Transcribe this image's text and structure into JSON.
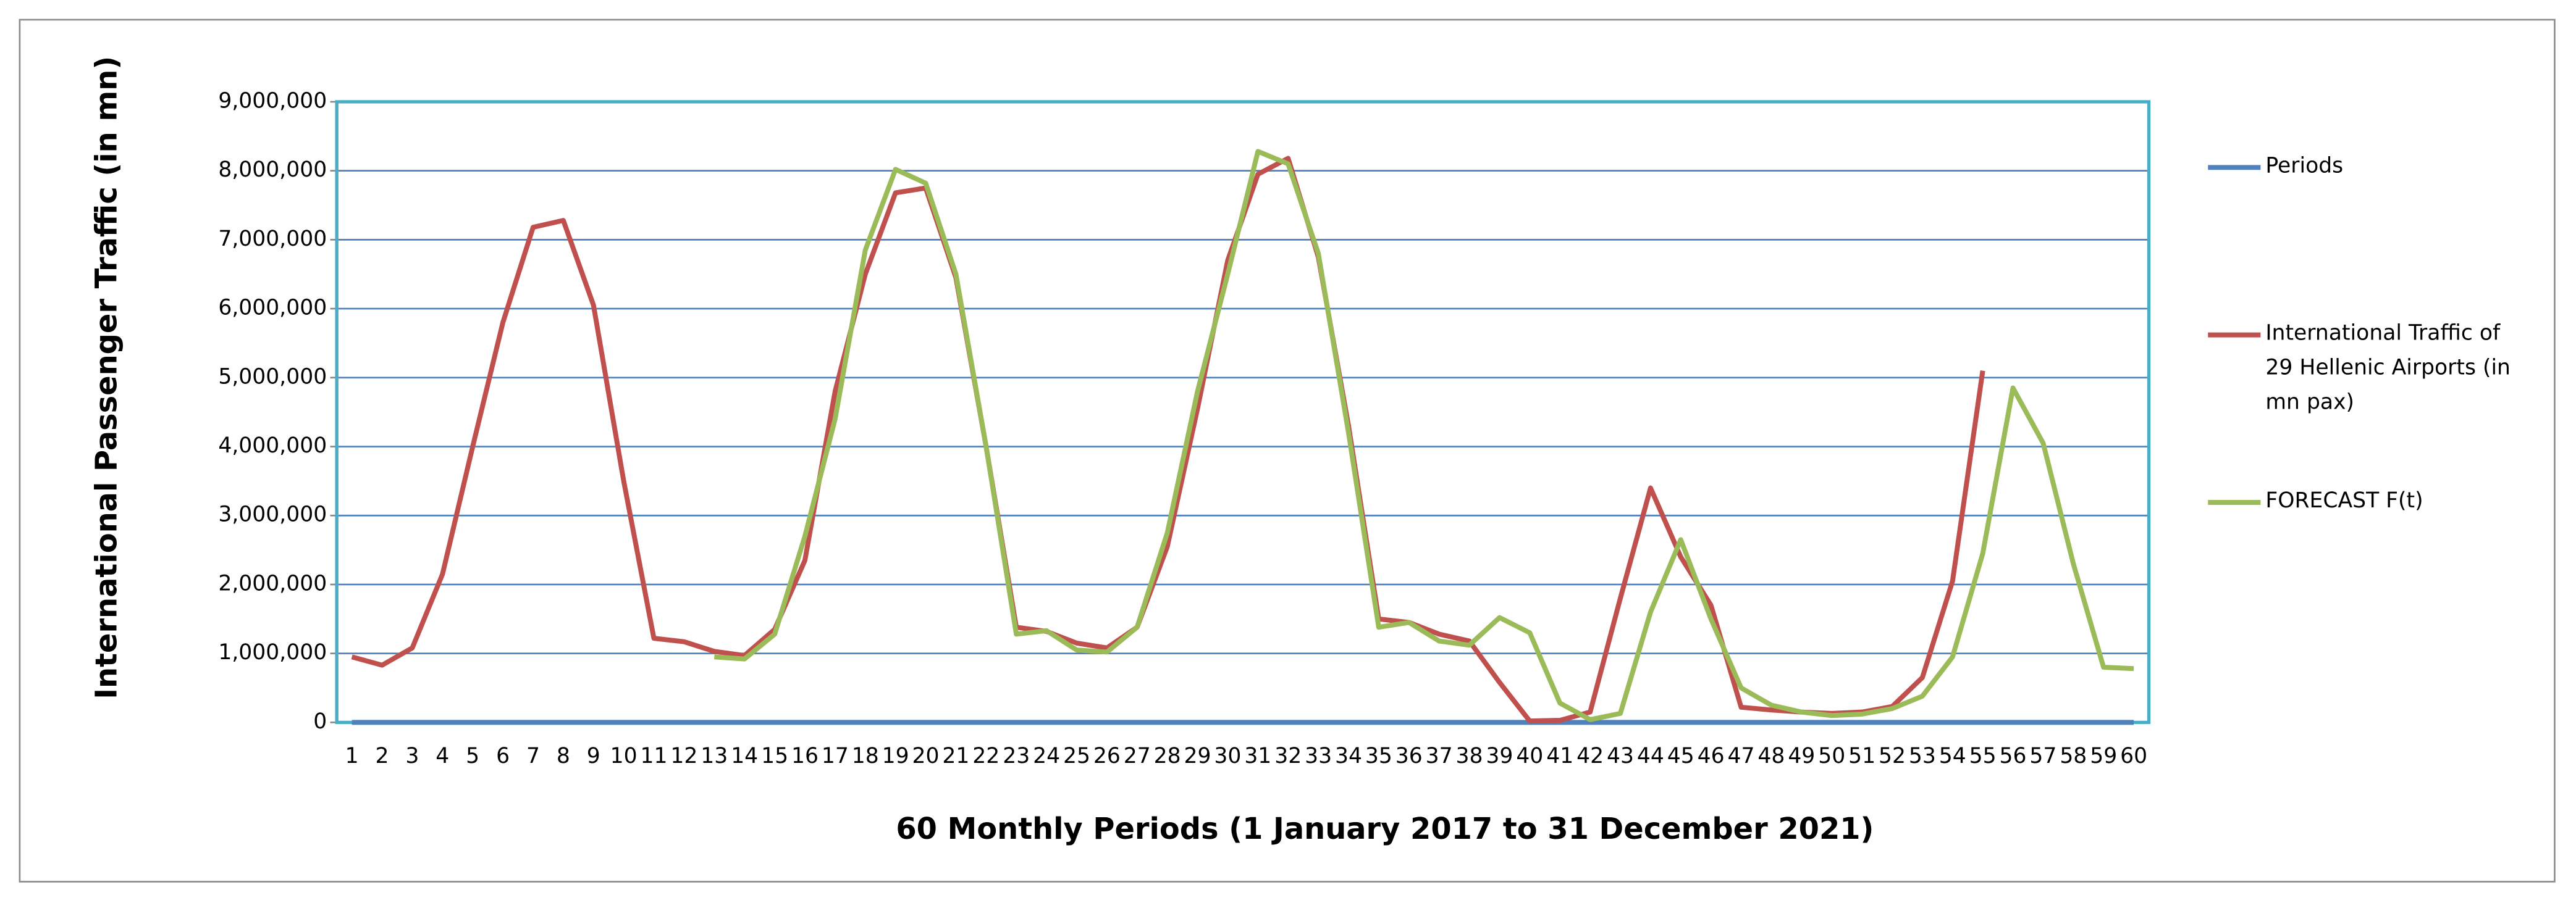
{
  "chart_data": {
    "type": "line",
    "y_label": "International Passenger Traffic (in mn)",
    "x_label": "60 Monthly Periods (1 January 2017 to 31 December 2021)",
    "categories": [
      "1",
      "2",
      "3",
      "4",
      "5",
      "6",
      "7",
      "8",
      "9",
      "10",
      "11",
      "12",
      "13",
      "14",
      "15",
      "16",
      "17",
      "18",
      "19",
      "20",
      "21",
      "22",
      "23",
      "24",
      "25",
      "26",
      "27",
      "28",
      "29",
      "30",
      "31",
      "32",
      "33",
      "34",
      "35",
      "36",
      "37",
      "38",
      "39",
      "40",
      "41",
      "42",
      "43",
      "44",
      "45",
      "46",
      "47",
      "48",
      "49",
      "50",
      "51",
      "52",
      "53",
      "54",
      "55",
      "56",
      "57",
      "58",
      "59",
      "60"
    ],
    "ylim": [
      0,
      9000000
    ],
    "yticks": [
      0,
      {
        "value": 1000000,
        "label": "1,000,000"
      },
      {
        "value": 2000000,
        "label": "2,000,000"
      },
      {
        "value": 3000000,
        "label": "3,000,000"
      },
      {
        "value": 4000000,
        "label": "4,000,000"
      },
      {
        "value": 5000000,
        "label": "5,000,000"
      },
      {
        "value": 6000000,
        "label": "6,000,000"
      },
      {
        "value": 7000000,
        "label": "7,000,000"
      },
      {
        "value": 8000000,
        "label": "8,000,000"
      },
      {
        "value": 9000000,
        "label": "9,000,000"
      }
    ],
    "grid": true,
    "legend": "right",
    "series": [
      {
        "name": "Periods",
        "color": "#4f81bd",
        "values": [
          1,
          2,
          3,
          4,
          5,
          6,
          7,
          8,
          9,
          10,
          11,
          12,
          13,
          14,
          15,
          16,
          17,
          18,
          19,
          20,
          21,
          22,
          23,
          24,
          25,
          26,
          27,
          28,
          29,
          30,
          31,
          32,
          33,
          34,
          35,
          36,
          37,
          38,
          39,
          40,
          41,
          42,
          43,
          44,
          45,
          46,
          47,
          48,
          49,
          50,
          51,
          52,
          53,
          54,
          55,
          56,
          57,
          58,
          59,
          60
        ]
      },
      {
        "name": "International Traffic of 29 Hellenic Airports (in mn pax)",
        "color": "#c0504d",
        "values": [
          950000,
          830000,
          1080000,
          2150000,
          4000000,
          5800000,
          7180000,
          7280000,
          6050000,
          3500000,
          1220000,
          1170000,
          1030000,
          970000,
          1350000,
          2350000,
          4800000,
          6500000,
          7680000,
          7750000,
          6450000,
          4000000,
          1380000,
          1320000,
          1150000,
          1080000,
          1380000,
          2550000,
          4550000,
          6700000,
          7950000,
          8180000,
          6750000,
          4300000,
          1500000,
          1450000,
          1280000,
          1180000,
          580000,
          20000,
          30000,
          150000,
          1800000,
          3400000,
          2400000,
          1700000,
          220000,
          180000,
          150000,
          130000,
          150000,
          230000,
          650000,
          2050000,
          5100000,
          null,
          null,
          null,
          null,
          null
        ]
      },
      {
        "name": "FORECAST F(t)",
        "color": "#9bbb59",
        "values": [
          null,
          null,
          null,
          null,
          null,
          null,
          null,
          null,
          null,
          null,
          null,
          null,
          950000,
          920000,
          1280000,
          2700000,
          4400000,
          6850000,
          8020000,
          7820000,
          6500000,
          4000000,
          1280000,
          1330000,
          1050000,
          1020000,
          1380000,
          2750000,
          4800000,
          6500000,
          8280000,
          8100000,
          6800000,
          4200000,
          1380000,
          1450000,
          1180000,
          1120000,
          1520000,
          1300000,
          280000,
          40000,
          130000,
          1600000,
          2650000,
          1500000,
          500000,
          250000,
          150000,
          100000,
          120000,
          200000,
          380000,
          950000,
          2450000,
          4850000,
          4050000,
          2300000,
          800000,
          780000
        ]
      }
    ]
  }
}
